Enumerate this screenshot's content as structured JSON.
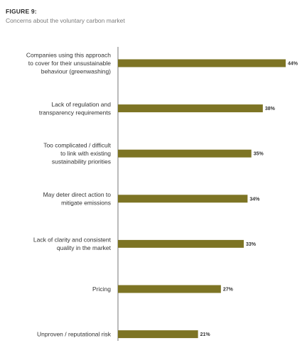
{
  "figure": {
    "label": "FIGURE 9:",
    "subtitle": "Concerns about the voluntary carbon market"
  },
  "colors": {
    "bar": "#7d7424",
    "axis": "#555555"
  },
  "chart_data": {
    "type": "bar",
    "orientation": "horizontal",
    "title": "FIGURE 9:",
    "subtitle": "Concerns about the voluntary carbon market",
    "categories": [
      [
        "Companies using this approach",
        "to cover for their unsustainable",
        "behaviour (greenwashing)"
      ],
      [
        "Lack of regulation and",
        "transparency requirements"
      ],
      [
        "Too complicated / difficult",
        "to link with existing",
        "sustainability priorities"
      ],
      [
        "May deter direct action to",
        "mitigate emissions"
      ],
      [
        "Lack of clarity and consistent",
        "quality in the market"
      ],
      [
        "Pricing"
      ],
      [
        "Unproven / reputational risk"
      ]
    ],
    "values": [
      44,
      38,
      35,
      34,
      33,
      27,
      21
    ],
    "value_labels": [
      "44%",
      "38%",
      "35%",
      "34%",
      "33%",
      "27%",
      "21%"
    ],
    "unit": "%",
    "xlim": [
      0,
      44
    ],
    "grid": false,
    "legend": "none"
  }
}
